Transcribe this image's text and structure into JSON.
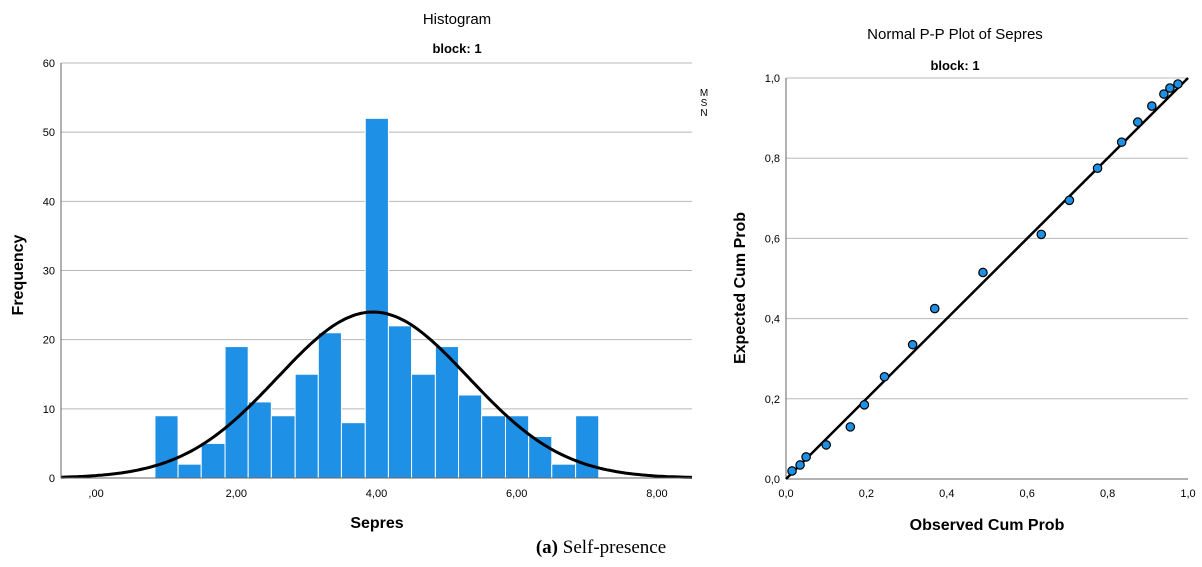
{
  "chart_data": [
    {
      "type": "bar",
      "title": "Histogram",
      "subtitle": "block: 1",
      "xlabel": "Sepres",
      "ylabel": "Frequency",
      "xlim": [
        -0.5,
        8.5
      ],
      "ylim": [
        0,
        60
      ],
      "x_ticks": [
        0,
        2,
        4,
        6,
        8
      ],
      "x_tick_labels": [
        ",00",
        "2,00",
        "4,00",
        "6,00",
        "8,00"
      ],
      "y_ticks": [
        0,
        10,
        20,
        30,
        40,
        50,
        60
      ],
      "y_tick_labels": [
        "0",
        "10",
        "20",
        "30",
        "40",
        "50",
        "60"
      ],
      "grid": true,
      "bar_color": "#1e90e6",
      "bins": [
        {
          "start": 0.84,
          "end": 1.17,
          "value": 9
        },
        {
          "start": 1.17,
          "end": 1.5,
          "value": 2
        },
        {
          "start": 1.5,
          "end": 1.84,
          "value": 5
        },
        {
          "start": 1.84,
          "end": 2.17,
          "value": 19
        },
        {
          "start": 2.17,
          "end": 2.5,
          "value": 11
        },
        {
          "start": 2.5,
          "end": 2.84,
          "value": 9
        },
        {
          "start": 2.84,
          "end": 3.17,
          "value": 15
        },
        {
          "start": 3.17,
          "end": 3.5,
          "value": 21
        },
        {
          "start": 3.5,
          "end": 3.84,
          "value": 8
        },
        {
          "start": 3.84,
          "end": 4.17,
          "value": 52
        },
        {
          "start": 4.17,
          "end": 4.5,
          "value": 22
        },
        {
          "start": 4.5,
          "end": 4.84,
          "value": 15
        },
        {
          "start": 4.84,
          "end": 5.17,
          "value": 19
        },
        {
          "start": 5.17,
          "end": 5.5,
          "value": 12
        },
        {
          "start": 5.5,
          "end": 5.84,
          "value": 9
        },
        {
          "start": 5.84,
          "end": 6.17,
          "value": 9
        },
        {
          "start": 6.17,
          "end": 6.5,
          "value": 6
        },
        {
          "start": 6.5,
          "end": 6.84,
          "value": 2
        },
        {
          "start": 6.84,
          "end": 7.17,
          "value": 9
        }
      ],
      "normal_curve": {
        "mean": 3.95,
        "sd": 1.36,
        "peak": 24
      },
      "stats_legend": [
        "M",
        "S",
        "N"
      ]
    },
    {
      "type": "scatter",
      "title": "Normal P-P Plot of Sepres",
      "subtitle": "block: 1",
      "xlabel": "Observed Cum Prob",
      "ylabel": "Expected Cum Prob",
      "xlim": [
        0,
        1
      ],
      "ylim": [
        0,
        1
      ],
      "x_ticks": [
        0,
        0.2,
        0.4,
        0.6,
        0.8,
        1
      ],
      "x_tick_labels": [
        "0,0",
        "0,2",
        "0,4",
        "0,6",
        "0,8",
        "1,0"
      ],
      "y_ticks": [
        0,
        0.2,
        0.4,
        0.6,
        0.8,
        1
      ],
      "y_tick_labels": [
        "0,0",
        "0,2",
        "0,4",
        "0,6",
        "0,8",
        "1,0"
      ],
      "grid": true,
      "point_color": "#1e90e6",
      "reference_line": [
        [
          0,
          0
        ],
        [
          1,
          1
        ]
      ],
      "points": [
        {
          "x": 0.015,
          "y": 0.02
        },
        {
          "x": 0.035,
          "y": 0.035
        },
        {
          "x": 0.05,
          "y": 0.055
        },
        {
          "x": 0.1,
          "y": 0.085
        },
        {
          "x": 0.16,
          "y": 0.13
        },
        {
          "x": 0.195,
          "y": 0.185
        },
        {
          "x": 0.245,
          "y": 0.255
        },
        {
          "x": 0.315,
          "y": 0.335
        },
        {
          "x": 0.37,
          "y": 0.425
        },
        {
          "x": 0.49,
          "y": 0.515
        },
        {
          "x": 0.635,
          "y": 0.61
        },
        {
          "x": 0.705,
          "y": 0.695
        },
        {
          "x": 0.775,
          "y": 0.775
        },
        {
          "x": 0.835,
          "y": 0.84
        },
        {
          "x": 0.875,
          "y": 0.89
        },
        {
          "x": 0.91,
          "y": 0.93
        },
        {
          "x": 0.94,
          "y": 0.96
        },
        {
          "x": 0.955,
          "y": 0.975
        },
        {
          "x": 0.975,
          "y": 0.985
        }
      ]
    }
  ],
  "caption": {
    "label": "(a)",
    "text": " Self-presence"
  }
}
